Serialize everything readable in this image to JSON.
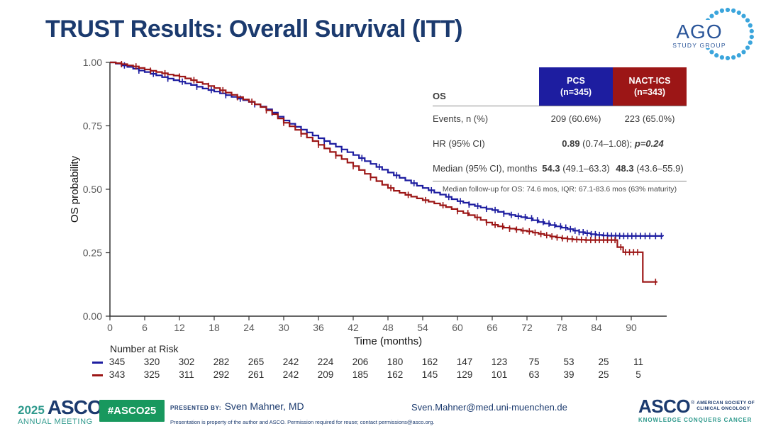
{
  "slide": {
    "title": "TRUST Results: Overall Survival (ITT)"
  },
  "colors": {
    "navy": "#1b3a6e",
    "teal": "#2f9a8d",
    "green": "#18985e",
    "pcs_blue": "#1d1da0",
    "nact_red": "#9c1616",
    "axis_gray": "#5a5a5a"
  },
  "ago_logo": {
    "text": "AGO",
    "subtext": "STUDY GROUP"
  },
  "stats_table": {
    "corner_label": "OS",
    "col_pcs": {
      "line1": "PCS",
      "line2": "(n=345)"
    },
    "col_nact": {
      "line1": "NACT-ICS",
      "line2": "(n=343)"
    },
    "events": {
      "label": "Events, n (%)",
      "pcs": "209 (60.6%)",
      "nact": "223 (65.0%)"
    },
    "hr": {
      "label": "HR (95% CI)",
      "bold": "0.89",
      "rest": " (0.74–1.08); ",
      "p": "p=0.24"
    },
    "median": {
      "label": "Median (95% CI), months",
      "pcs_bold": "54.3",
      "pcs_rest": " (49.1–63.3)",
      "nact_bold": "48.3",
      "nact_rest": " (43.6–55.9)"
    },
    "note": "Median follow-up for OS: 74.6 mos, IQR: 67.1-83.6 mos (63% maturity)"
  },
  "footer": {
    "year": "2025",
    "asco": "ASCO",
    "annual_meeting": "ANNUAL MEETING",
    "hashtag": "#ASCO25",
    "presented_by_label": "PRESENTED BY:",
    "presenter": "Sven Mahner, MD",
    "disclaimer": "Presentation is property of the author and ASCO. Permission required for reuse; contact permissions@asco.org.",
    "email": "Sven.Mahner@med.uni-muenchen.de",
    "asco_full_1": "AMERICAN SOCIETY OF",
    "asco_full_2": "CLINICAL ONCOLOGY",
    "tagline": "KNOWLEDGE CONQUERS CANCER"
  },
  "chart_data": {
    "type": "line",
    "subtype": "kaplan-meier-step",
    "title": "",
    "xlabel": "Time (months)",
    "ylabel": "OS probability",
    "xlim": [
      0,
      96
    ],
    "ylim": [
      0,
      1
    ],
    "grid": false,
    "xticks": [
      0,
      6,
      12,
      18,
      24,
      30,
      36,
      42,
      48,
      54,
      60,
      66,
      72,
      78,
      84,
      90
    ],
    "yticks": [
      0,
      0.25,
      0.5,
      0.75,
      1
    ],
    "ytick_labels": [
      "0.00",
      "0.25",
      "0.50",
      "0.75",
      "1.00"
    ],
    "series": [
      {
        "name": "PCS",
        "color": "#1d1da0",
        "points": [
          [
            0,
            1.0
          ],
          [
            1,
            0.995
          ],
          [
            2,
            0.988
          ],
          [
            3,
            0.982
          ],
          [
            4,
            0.975
          ],
          [
            5,
            0.968
          ],
          [
            6,
            0.962
          ],
          [
            7,
            0.955
          ],
          [
            8,
            0.949
          ],
          [
            9,
            0.942
          ],
          [
            10,
            0.936
          ],
          [
            11,
            0.93
          ],
          [
            12,
            0.924
          ],
          [
            13,
            0.917
          ],
          [
            14,
            0.911
          ],
          [
            15,
            0.904
          ],
          [
            16,
            0.897
          ],
          [
            17,
            0.891
          ],
          [
            18,
            0.885
          ],
          [
            19,
            0.878
          ],
          [
            20,
            0.871
          ],
          [
            21,
            0.864
          ],
          [
            22,
            0.857
          ],
          [
            23,
            0.851
          ],
          [
            24,
            0.844
          ],
          [
            25,
            0.835
          ],
          [
            26,
            0.826
          ],
          [
            27,
            0.815
          ],
          [
            28,
            0.802
          ],
          [
            29,
            0.786
          ],
          [
            30,
            0.771
          ],
          [
            31,
            0.758
          ],
          [
            32,
            0.746
          ],
          [
            33,
            0.735
          ],
          [
            34,
            0.724
          ],
          [
            35,
            0.712
          ],
          [
            36,
            0.701
          ],
          [
            37,
            0.69
          ],
          [
            38,
            0.679
          ],
          [
            39,
            0.668
          ],
          [
            40,
            0.657
          ],
          [
            41,
            0.646
          ],
          [
            42,
            0.635
          ],
          [
            43,
            0.623
          ],
          [
            44,
            0.611
          ],
          [
            45,
            0.6
          ],
          [
            46,
            0.588
          ],
          [
            47,
            0.577
          ],
          [
            48,
            0.566
          ],
          [
            49,
            0.555
          ],
          [
            50,
            0.545
          ],
          [
            51,
            0.535
          ],
          [
            52,
            0.524
          ],
          [
            53,
            0.514
          ],
          [
            54,
            0.505
          ],
          [
            55,
            0.496
          ],
          [
            56,
            0.487
          ],
          [
            57,
            0.479
          ],
          [
            58,
            0.47
          ],
          [
            59,
            0.461
          ],
          [
            60,
            0.453
          ],
          [
            61,
            0.447
          ],
          [
            62,
            0.44
          ],
          [
            63,
            0.434
          ],
          [
            64,
            0.428
          ],
          [
            65,
            0.423
          ],
          [
            66,
            0.418
          ],
          [
            67,
            0.411
          ],
          [
            68,
            0.404
          ],
          [
            69,
            0.399
          ],
          [
            70,
            0.394
          ],
          [
            71,
            0.39
          ],
          [
            72,
            0.386
          ],
          [
            73,
            0.378
          ],
          [
            74,
            0.371
          ],
          [
            75,
            0.365
          ],
          [
            76,
            0.359
          ],
          [
            77,
            0.354
          ],
          [
            78,
            0.349
          ],
          [
            79,
            0.343
          ],
          [
            80,
            0.337
          ],
          [
            81,
            0.331
          ],
          [
            82,
            0.327
          ],
          [
            83,
            0.323
          ],
          [
            84,
            0.32
          ],
          [
            85,
            0.318
          ],
          [
            86,
            0.317
          ],
          [
            88,
            0.316
          ],
          [
            95.5,
            0.315
          ]
        ],
        "censors": [
          2.5,
          5,
          7.5,
          10,
          12.5,
          15,
          17.5,
          20,
          22.5,
          25,
          28,
          31,
          34,
          37,
          40,
          43.5,
          46.5,
          49.5,
          52.5,
          55.5,
          58.5,
          60.5,
          62,
          63.5,
          65,
          66.5,
          68,
          69.3,
          70.5,
          71.7,
          72.8,
          73.8,
          74.8,
          75.8,
          76.8,
          77.8,
          78.7,
          79.5,
          80.3,
          81,
          81.7,
          82.4,
          83.1,
          83.8,
          84.5,
          85.2,
          85.9,
          86.6,
          87.3,
          88,
          88.7,
          89.4,
          90.1,
          90.8,
          91.6,
          92.4,
          93.2,
          94.2,
          95.2
        ]
      },
      {
        "name": "NACT-ICS",
        "color": "#9c1616",
        "points": [
          [
            0,
            1.0
          ],
          [
            1,
            0.997
          ],
          [
            2,
            0.993
          ],
          [
            3,
            0.988
          ],
          [
            4,
            0.984
          ],
          [
            5,
            0.978
          ],
          [
            6,
            0.972
          ],
          [
            7,
            0.967
          ],
          [
            8,
            0.962
          ],
          [
            9,
            0.957
          ],
          [
            10,
            0.952
          ],
          [
            11,
            0.948
          ],
          [
            12,
            0.944
          ],
          [
            13,
            0.937
          ],
          [
            14,
            0.93
          ],
          [
            15,
            0.922
          ],
          [
            16,
            0.915
          ],
          [
            17,
            0.907
          ],
          [
            18,
            0.899
          ],
          [
            19,
            0.89
          ],
          [
            20,
            0.881
          ],
          [
            21,
            0.872
          ],
          [
            22,
            0.863
          ],
          [
            23,
            0.854
          ],
          [
            24,
            0.845
          ],
          [
            25,
            0.835
          ],
          [
            26,
            0.824
          ],
          [
            27,
            0.811
          ],
          [
            28,
            0.796
          ],
          [
            29,
            0.779
          ],
          [
            30,
            0.762
          ],
          [
            31,
            0.748
          ],
          [
            32,
            0.734
          ],
          [
            33,
            0.719
          ],
          [
            34,
            0.704
          ],
          [
            35,
            0.69
          ],
          [
            36,
            0.675
          ],
          [
            37,
            0.661
          ],
          [
            38,
            0.647
          ],
          [
            39,
            0.633
          ],
          [
            40,
            0.619
          ],
          [
            41,
            0.605
          ],
          [
            42,
            0.591
          ],
          [
            43,
            0.576
          ],
          [
            44,
            0.561
          ],
          [
            45,
            0.547
          ],
          [
            46,
            0.532
          ],
          [
            47,
            0.518
          ],
          [
            48,
            0.505
          ],
          [
            49,
            0.494
          ],
          [
            50,
            0.486
          ],
          [
            51,
            0.478
          ],
          [
            52,
            0.471
          ],
          [
            53,
            0.464
          ],
          [
            54,
            0.457
          ],
          [
            55,
            0.451
          ],
          [
            56,
            0.444
          ],
          [
            57,
            0.437
          ],
          [
            58,
            0.43
          ],
          [
            59,
            0.422
          ],
          [
            60,
            0.414
          ],
          [
            61,
            0.406
          ],
          [
            62,
            0.398
          ],
          [
            63,
            0.389
          ],
          [
            64,
            0.379
          ],
          [
            65,
            0.369
          ],
          [
            66,
            0.36
          ],
          [
            67,
            0.354
          ],
          [
            68,
            0.349
          ],
          [
            69,
            0.345
          ],
          [
            70,
            0.341
          ],
          [
            71,
            0.337
          ],
          [
            72,
            0.334
          ],
          [
            73,
            0.329
          ],
          [
            74,
            0.324
          ],
          [
            75,
            0.319
          ],
          [
            76,
            0.314
          ],
          [
            77,
            0.31
          ],
          [
            78,
            0.307
          ],
          [
            79,
            0.304
          ],
          [
            80,
            0.302
          ],
          [
            81,
            0.301
          ],
          [
            82,
            0.3
          ],
          [
            87,
            0.3
          ],
          [
            87.6,
            0.272
          ],
          [
            88.6,
            0.252
          ],
          [
            91.8,
            0.252
          ],
          [
            92,
            0.135
          ],
          [
            94.5,
            0.135
          ]
        ],
        "censors": [
          2,
          4.5,
          7,
          9.5,
          12,
          14.5,
          17,
          19.5,
          22,
          24.5,
          27,
          30,
          33,
          36,
          39,
          42,
          45,
          48.5,
          51.5,
          54.5,
          57.5,
          60,
          61.8,
          63.4,
          65,
          66.5,
          67.8,
          69,
          70.2,
          71.3,
          72.4,
          73.4,
          74.4,
          75.4,
          76.3,
          77.2,
          78.1,
          79,
          79.8,
          80.6,
          81.4,
          82.2,
          83,
          83.8,
          84.5,
          85.2,
          85.9,
          86.6,
          87.2,
          88.2,
          89,
          89.7,
          90.4,
          91.1,
          94.2
        ]
      }
    ],
    "risk_table": {
      "label": "Number at Risk",
      "times": [
        0,
        6,
        12,
        18,
        24,
        30,
        36,
        42,
        48,
        54,
        60,
        66,
        72,
        78,
        84,
        90
      ],
      "rows": [
        {
          "name": "PCS",
          "color": "#1d1da0",
          "values": [
            345,
            320,
            302,
            282,
            265,
            242,
            224,
            206,
            180,
            162,
            147,
            123,
            75,
            53,
            25,
            11
          ]
        },
        {
          "name": "NACT-ICS",
          "color": "#9c1616",
          "values": [
            343,
            325,
            311,
            292,
            261,
            242,
            209,
            185,
            162,
            145,
            129,
            101,
            63,
            39,
            25,
            5
          ]
        }
      ]
    }
  }
}
